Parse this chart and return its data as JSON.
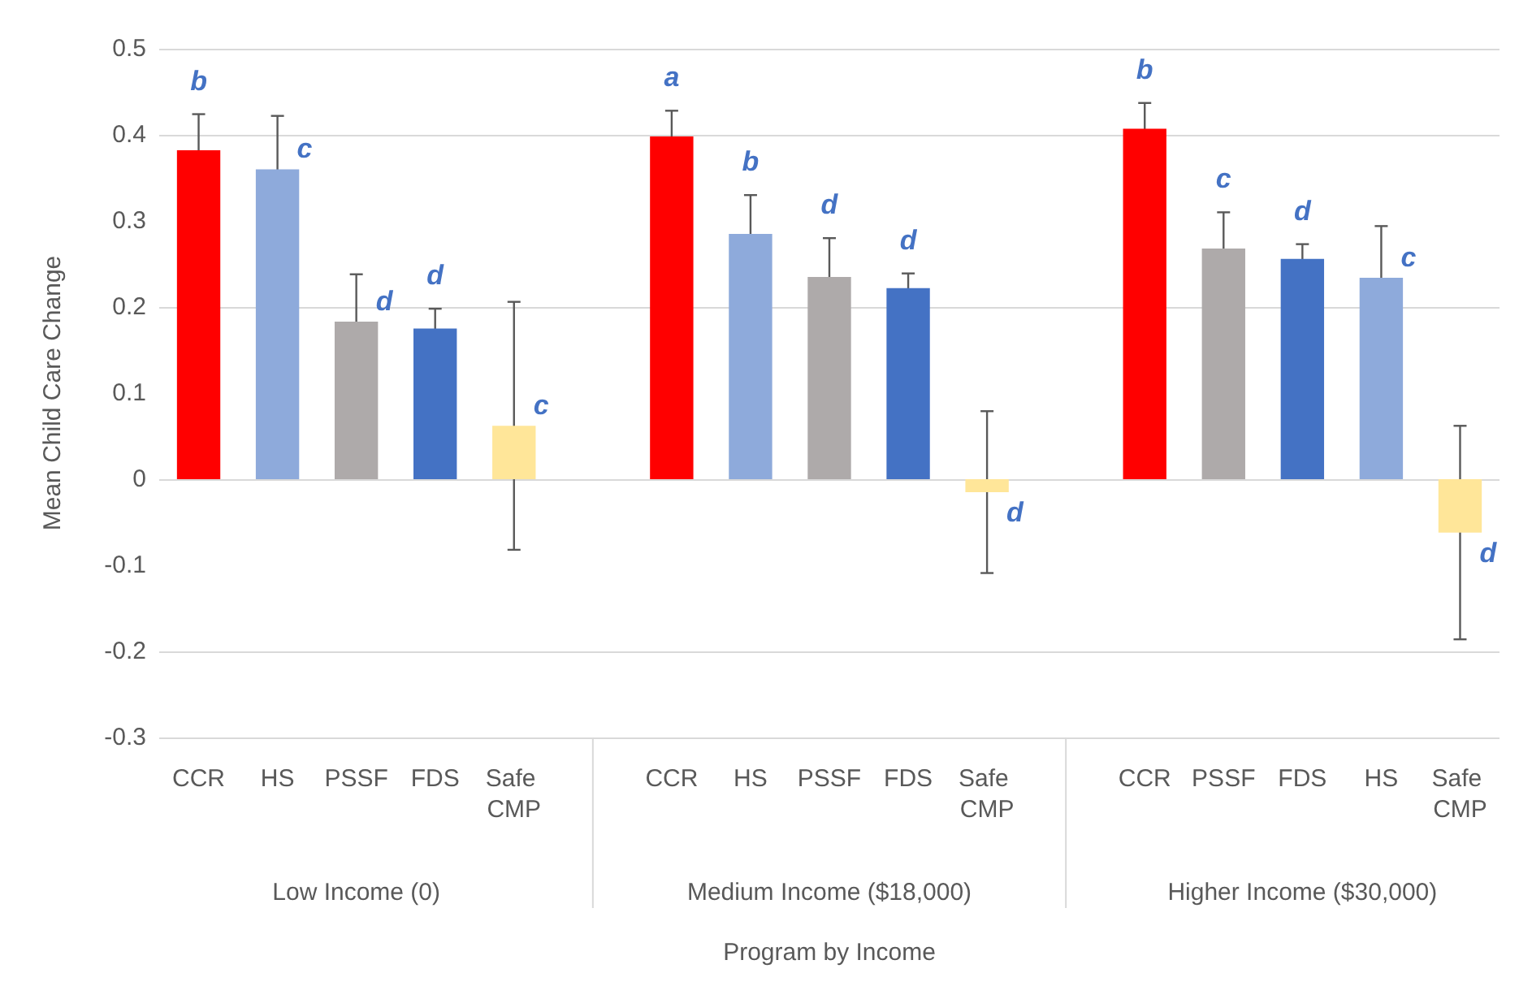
{
  "chart_data": {
    "type": "bar",
    "categories": [
      "CCR",
      "HS",
      "PSSF",
      "FDS",
      "Safe CMP",
      null,
      "CCR",
      "HS",
      "PSSF",
      "FDS",
      "Safe CMP",
      null,
      "CCR",
      "PSSF",
      "FDS",
      "HS",
      "Safe CMP"
    ],
    "values": [
      0.382,
      0.36,
      0.183,
      0.175,
      0.062,
      null,
      0.398,
      0.285,
      0.235,
      0.222,
      -0.015,
      null,
      0.407,
      0.268,
      0.256,
      0.234,
      -0.062
    ],
    "errors": [
      0.042,
      0.062,
      0.055,
      0.023,
      0.144,
      null,
      0.03,
      0.045,
      0.045,
      0.017,
      0.094,
      null,
      0.03,
      0.042,
      0.017,
      0.06,
      0.124
    ],
    "colors": [
      "#ff0000",
      "#8eaadb",
      "#aeaaaa",
      "#4472c4",
      "#ffe699",
      null,
      "#ff0000",
      "#8eaadb",
      "#aeaaaa",
      "#4472c4",
      "#ffe699",
      null,
      "#ff0000",
      "#aeaaaa",
      "#4472c4",
      "#8eaadb",
      "#ffe699"
    ],
    "value_labels": [
      "b",
      "c",
      "d",
      "d",
      "c",
      null,
      "a",
      "b",
      "d",
      "d",
      "d",
      null,
      "b",
      "c",
      "d",
      "c",
      "d"
    ],
    "annotations": [
      "Low Income (0)",
      "Medium Income ($18,000)",
      "Higher Income ($30,000)"
    ],
    "xlabel": "Program by Income",
    "ylabel": "Mean Child Care Change",
    "ylim": [
      -0.3,
      0.5
    ],
    "yticks": [
      -0.3,
      -0.2,
      -0.1,
      0,
      0.1,
      0.2,
      0.3,
      0.4,
      0.5
    ],
    "grid": "y"
  }
}
